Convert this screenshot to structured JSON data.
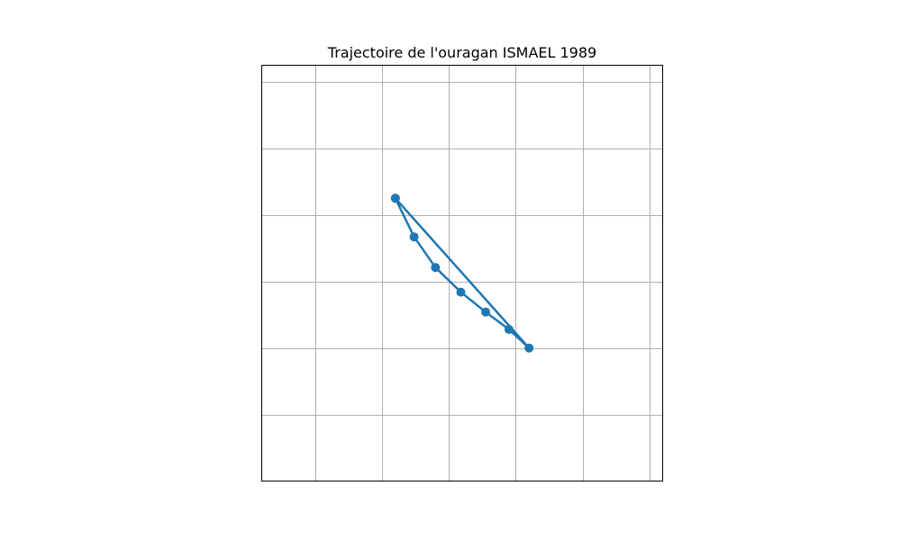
{
  "chart_data": {
    "type": "line",
    "title": "Trajectoire de l'ouragan ISMAEL 1989",
    "xlabel": "",
    "ylabel": "",
    "grid": true,
    "axis_ticks_labeled": false,
    "xlim": [
      0,
      6
    ],
    "ylim": [
      0,
      6.25
    ],
    "x_gridlines": [
      0.8,
      1.8,
      2.8,
      3.8,
      4.8,
      5.8
    ],
    "y_gridlines": [
      1,
      2,
      3,
      4,
      5,
      6
    ],
    "series": [
      {
        "color": "#1f77b4",
        "points": [
          {
            "x": 2.0,
            "y": 4.25
          },
          {
            "x": 2.28,
            "y": 3.67
          },
          {
            "x": 2.6,
            "y": 3.21
          },
          {
            "x": 2.98,
            "y": 2.84
          },
          {
            "x": 3.35,
            "y": 2.54
          },
          {
            "x": 3.7,
            "y": 2.28
          },
          {
            "x": 4.0,
            "y": 2.0
          },
          {
            "x": 2.0,
            "y": 4.25
          }
        ]
      }
    ],
    "colors": {
      "line": "#1f77b4",
      "grid": "#b0b0b0",
      "frame": "#000000"
    }
  }
}
